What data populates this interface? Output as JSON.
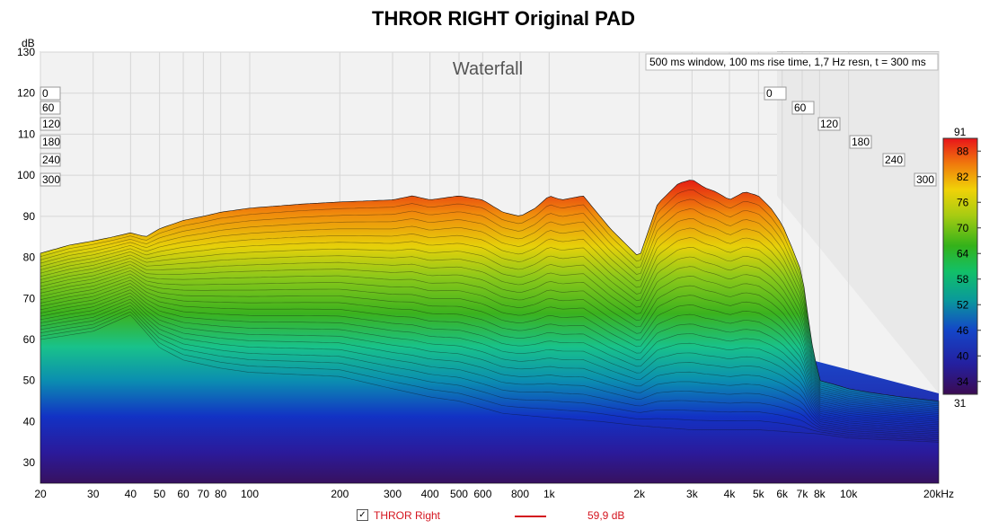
{
  "chart_data": {
    "type": "area",
    "title": "THROR RIGHT Original PAD",
    "subtitle": "Waterfall",
    "annotation": "500 ms window, 100 ms rise time,  1,7 Hz resn, t = 300 ms",
    "ylabel": "dB",
    "xlabel": "",
    "xscale": "log",
    "xlim": [
      20,
      20000
    ],
    "ylim": [
      25,
      130
    ],
    "yticks": [
      "130",
      "120",
      "110",
      "100",
      "90",
      "80",
      "70",
      "60",
      "50",
      "40",
      "30"
    ],
    "xticks": [
      {
        "f": 20,
        "label": "20"
      },
      {
        "f": 30,
        "label": "30"
      },
      {
        "f": 40,
        "label": "40"
      },
      {
        "f": 50,
        "label": "50"
      },
      {
        "f": 60,
        "label": "60"
      },
      {
        "f": 70,
        "label": "70"
      },
      {
        "f": 80,
        "label": "80"
      },
      {
        "f": 100,
        "label": "100"
      },
      {
        "f": 200,
        "label": "200"
      },
      {
        "f": 300,
        "label": "300"
      },
      {
        "f": 400,
        "label": "400"
      },
      {
        "f": 500,
        "label": "500"
      },
      {
        "f": 600,
        "label": "600"
      },
      {
        "f": 800,
        "label": "800"
      },
      {
        "f": 1000,
        "label": "1k"
      },
      {
        "f": 2000,
        "label": "2k"
      },
      {
        "f": 3000,
        "label": "3k"
      },
      {
        "f": 4000,
        "label": "4k"
      },
      {
        "f": 5000,
        "label": "5k"
      },
      {
        "f": 6000,
        "label": "6k"
      },
      {
        "f": 7000,
        "label": "7k"
      },
      {
        "f": 8000,
        "label": "8k"
      },
      {
        "f": 10000,
        "label": "10k"
      },
      {
        "f": 20000,
        "label": "20kHz"
      }
    ],
    "time_slices_ms": [
      "0",
      "60",
      "120",
      "180",
      "240",
      "300"
    ],
    "colorbar": {
      "max": "91",
      "min": "31",
      "ticks": [
        "88",
        "82",
        "76",
        "70",
        "64",
        "58",
        "52",
        "46",
        "40",
        "34"
      ]
    },
    "series": [
      {
        "name": "THROR Right",
        "time_ms": 0,
        "x": [
          20,
          25,
          30,
          35,
          40,
          45,
          50,
          60,
          70,
          80,
          100,
          150,
          200,
          300,
          350,
          400,
          500,
          600,
          700,
          800,
          900,
          1000,
          1100,
          1300,
          1600,
          2000,
          2300,
          2700,
          3000,
          3300,
          3600,
          4000,
          4500,
          5000,
          5500,
          6000,
          6500,
          7000,
          7500,
          8000,
          9000,
          10000,
          12000,
          15000,
          20000
        ],
        "y": [
          81,
          83,
          84,
          85,
          86,
          85,
          87,
          89,
          90,
          91,
          92,
          93,
          93.5,
          94,
          95,
          94,
          95,
          94,
          91,
          90,
          92,
          95,
          94,
          95,
          87,
          80,
          93,
          98,
          99,
          97,
          96,
          94,
          96,
          95,
          92,
          88,
          82,
          76,
          60,
          50,
          49,
          48,
          47,
          46,
          45
        ]
      },
      {
        "name": "",
        "time_ms": 300,
        "x": [
          20,
          30,
          40,
          50,
          60,
          80,
          100,
          200,
          300,
          400,
          500,
          700,
          1000,
          1500,
          2000,
          3000,
          5000,
          8000,
          10000,
          20000
        ],
        "y": [
          60,
          62,
          66,
          58,
          55,
          53,
          52,
          51,
          48,
          46,
          45,
          42,
          41,
          40,
          39,
          38,
          38,
          37,
          36,
          35
        ]
      }
    ],
    "legend": [
      {
        "label": "THROR Right",
        "value": "59,9 dB",
        "color": "#d4141e",
        "checked": "✓"
      }
    ]
  }
}
